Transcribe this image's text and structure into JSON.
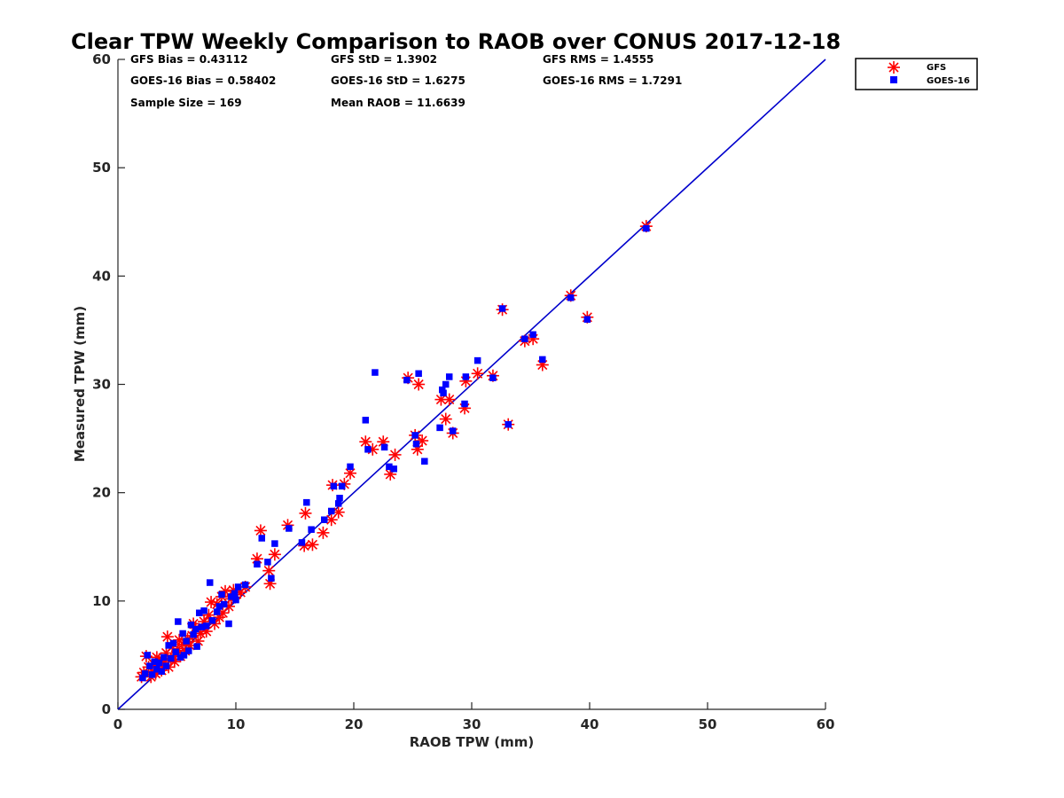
{
  "chart_data": {
    "type": "scatter",
    "title": "Clear TPW Weekly Comparison to RAOB over CONUS 2017-12-18",
    "xlabel": "RAOB TPW (mm)",
    "ylabel": "Measured TPW (mm)",
    "xlim": [
      0,
      60
    ],
    "ylim": [
      0,
      60
    ],
    "xticks": [
      "0",
      "10",
      "20",
      "30",
      "40",
      "50",
      "60"
    ],
    "yticks": [
      "0",
      "10",
      "20",
      "30",
      "40",
      "50",
      "60"
    ],
    "grid": false,
    "legend_position": "top-right, outside plot",
    "reference_line": {
      "type": "one-to-one",
      "x": [
        0,
        60
      ],
      "y": [
        0,
        60
      ],
      "color": "#0000cc"
    },
    "stats": [
      [
        "GFS Bias = 0.43112",
        "GFS StD = 1.3902",
        "GFS RMS = 1.4555"
      ],
      [
        "GOES-16 Bias = 0.58402",
        "GOES-16 StD = 1.6275",
        "GOES-16 RMS = 1.7291"
      ],
      [
        "Sample Size = 169",
        "Mean RAOB = 11.6639",
        ""
      ]
    ],
    "series": [
      {
        "name": "GFS",
        "marker": "asterisk",
        "color": "#ff0000",
        "points": [
          [
            44.8,
            44.6
          ],
          [
            38.4,
            38.2
          ],
          [
            39.8,
            36.2
          ],
          [
            32.6,
            36.9
          ],
          [
            36.0,
            31.8
          ],
          [
            35.2,
            34.2
          ],
          [
            34.5,
            34.0
          ],
          [
            33.1,
            26.3
          ],
          [
            31.8,
            30.8
          ],
          [
            30.5,
            31.0
          ],
          [
            29.5,
            30.3
          ],
          [
            29.4,
            27.8
          ],
          [
            28.4,
            25.5
          ],
          [
            28.1,
            28.6
          ],
          [
            27.8,
            26.8
          ],
          [
            27.4,
            28.6
          ],
          [
            25.8,
            24.8
          ],
          [
            25.5,
            30.0
          ],
          [
            25.4,
            24.0
          ],
          [
            25.2,
            25.3
          ],
          [
            24.6,
            30.6
          ],
          [
            23.5,
            23.5
          ],
          [
            23.1,
            21.7
          ],
          [
            22.5,
            24.7
          ],
          [
            21.6,
            24.0
          ],
          [
            21.0,
            24.7
          ],
          [
            19.7,
            21.8
          ],
          [
            19.2,
            20.8
          ],
          [
            18.7,
            18.2
          ],
          [
            18.2,
            20.7
          ],
          [
            18.1,
            17.5
          ],
          [
            17.4,
            16.3
          ],
          [
            16.5,
            15.2
          ],
          [
            15.9,
            18.1
          ],
          [
            15.8,
            15.1
          ],
          [
            14.4,
            17.0
          ],
          [
            13.3,
            14.3
          ],
          [
            12.9,
            11.6
          ],
          [
            12.8,
            12.8
          ],
          [
            12.1,
            16.5
          ],
          [
            11.8,
            13.9
          ],
          [
            10.8,
            11.3
          ],
          [
            10.4,
            10.8
          ],
          [
            10.0,
            10.6
          ],
          [
            9.6,
            10.2
          ],
          [
            9.4,
            9.5
          ],
          [
            9.1,
            10.9
          ],
          [
            8.9,
            8.9
          ],
          [
            8.6,
            8.5
          ],
          [
            8.4,
            9.7
          ],
          [
            8.2,
            7.9
          ],
          [
            7.9,
            9.9
          ],
          [
            7.7,
            8.7
          ],
          [
            7.5,
            7.2
          ],
          [
            7.3,
            8.1
          ],
          [
            7.0,
            7.0
          ],
          [
            6.8,
            6.3
          ],
          [
            6.6,
            7.5
          ],
          [
            6.3,
            6.8
          ],
          [
            6.1,
            5.9
          ],
          [
            5.9,
            6.5
          ],
          [
            5.7,
            5.4
          ],
          [
            5.5,
            6.0
          ],
          [
            5.3,
            4.9
          ],
          [
            5.1,
            5.6
          ],
          [
            4.9,
            5.0
          ],
          [
            4.8,
            4.4
          ],
          [
            4.6,
            5.8
          ],
          [
            4.5,
            4.6
          ],
          [
            4.3,
            3.9
          ],
          [
            4.2,
            6.7
          ],
          [
            4.0,
            4.5
          ],
          [
            3.8,
            4.2
          ],
          [
            3.7,
            3.6
          ],
          [
            3.5,
            4.6
          ],
          [
            3.4,
            3.8
          ],
          [
            3.2,
            3.3
          ],
          [
            3.1,
            4.1
          ],
          [
            2.9,
            3.5
          ],
          [
            2.8,
            3.0
          ],
          [
            2.6,
            3.9
          ],
          [
            2.4,
            4.9
          ],
          [
            2.2,
            3.4
          ],
          [
            2.0,
            3.0
          ],
          [
            6.4,
            7.9
          ],
          [
            5.2,
            6.4
          ],
          [
            4.1,
            5.2
          ],
          [
            3.3,
            4.8
          ],
          [
            8.8,
            10.4
          ],
          [
            9.8,
            11.0
          ]
        ]
      },
      {
        "name": "GOES-16",
        "marker": "square",
        "color": "#0000ff",
        "points": [
          [
            44.8,
            44.4
          ],
          [
            38.4,
            38.0
          ],
          [
            39.8,
            36.0
          ],
          [
            32.6,
            37.0
          ],
          [
            36.0,
            32.3
          ],
          [
            35.2,
            34.6
          ],
          [
            34.5,
            34.2
          ],
          [
            33.1,
            26.3
          ],
          [
            31.8,
            30.6
          ],
          [
            30.5,
            32.2
          ],
          [
            29.5,
            30.7
          ],
          [
            29.4,
            28.2
          ],
          [
            28.4,
            25.7
          ],
          [
            28.1,
            30.7
          ],
          [
            27.8,
            30.0
          ],
          [
            27.5,
            29.5
          ],
          [
            27.3,
            26.0
          ],
          [
            27.6,
            29.2
          ],
          [
            26.0,
            22.9
          ],
          [
            25.5,
            31.0
          ],
          [
            25.3,
            24.5
          ],
          [
            25.2,
            25.3
          ],
          [
            24.5,
            30.4
          ],
          [
            23.4,
            22.2
          ],
          [
            23.0,
            22.4
          ],
          [
            22.6,
            24.2
          ],
          [
            21.8,
            31.1
          ],
          [
            21.0,
            26.7
          ],
          [
            21.2,
            24.0
          ],
          [
            19.7,
            22.4
          ],
          [
            19.0,
            20.6
          ],
          [
            18.8,
            19.5
          ],
          [
            18.7,
            19.0
          ],
          [
            18.3,
            20.6
          ],
          [
            18.1,
            18.3
          ],
          [
            17.5,
            17.5
          ],
          [
            16.4,
            16.6
          ],
          [
            16.0,
            19.1
          ],
          [
            15.6,
            15.4
          ],
          [
            14.5,
            16.7
          ],
          [
            13.3,
            15.3
          ],
          [
            13.0,
            12.1
          ],
          [
            12.7,
            13.6
          ],
          [
            12.2,
            15.8
          ],
          [
            11.8,
            13.4
          ],
          [
            10.8,
            11.5
          ],
          [
            10.2,
            11.3
          ],
          [
            10.0,
            10.1
          ],
          [
            9.6,
            10.4
          ],
          [
            9.4,
            7.9
          ],
          [
            9.0,
            9.7
          ],
          [
            8.8,
            10.6
          ],
          [
            8.4,
            9.0
          ],
          [
            8.0,
            8.2
          ],
          [
            7.8,
            11.7
          ],
          [
            7.5,
            7.7
          ],
          [
            7.3,
            9.1
          ],
          [
            7.1,
            7.6
          ],
          [
            6.9,
            8.9
          ],
          [
            6.7,
            5.8
          ],
          [
            6.4,
            6.9
          ],
          [
            6.2,
            7.8
          ],
          [
            6.0,
            5.4
          ],
          [
            5.8,
            6.3
          ],
          [
            5.5,
            7.0
          ],
          [
            5.3,
            4.8
          ],
          [
            5.1,
            8.1
          ],
          [
            4.9,
            5.3
          ],
          [
            4.7,
            6.1
          ],
          [
            4.5,
            4.7
          ],
          [
            4.3,
            5.9
          ],
          [
            4.1,
            4.0
          ],
          [
            3.9,
            4.8
          ],
          [
            3.7,
            3.5
          ],
          [
            3.5,
            4.3
          ],
          [
            3.3,
            3.7
          ],
          [
            3.1,
            4.4
          ],
          [
            2.9,
            3.2
          ],
          [
            2.7,
            4.0
          ],
          [
            2.5,
            5.0
          ],
          [
            2.3,
            3.3
          ],
          [
            2.1,
            2.9
          ],
          [
            5.6,
            5.0
          ],
          [
            6.6,
            7.4
          ],
          [
            8.6,
            9.5
          ],
          [
            9.9,
            10.7
          ]
        ]
      }
    ]
  }
}
